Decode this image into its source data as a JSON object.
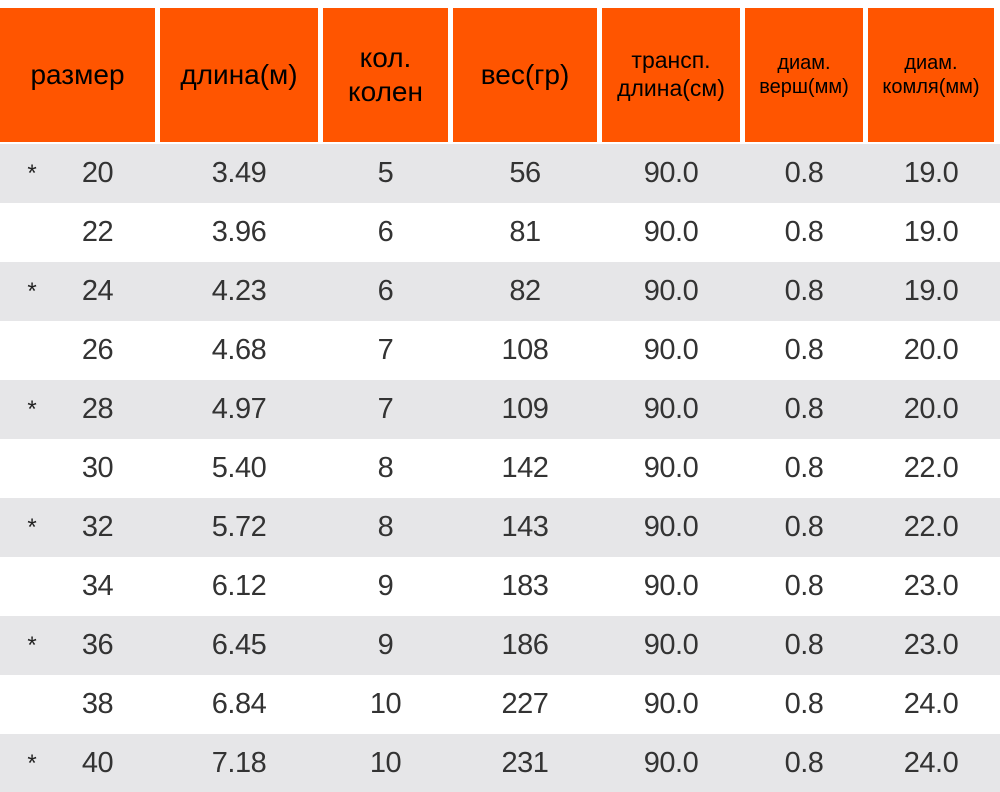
{
  "colors": {
    "header_bg": "#ff5500",
    "row_alt_bg": "#e6e6e8",
    "row_plain_bg": "#ffffff"
  },
  "headers": [
    "размер",
    "длина(м)",
    "кол.\nколен",
    "вес(гр)",
    "трансп.\nдлина(см)",
    "диам.\nверш(мм)",
    "диам.\nкомля(мм)"
  ],
  "rows": [
    {
      "marked": true,
      "star": "*",
      "size": "20",
      "length": "3.49",
      "sections": "5",
      "weight": "56",
      "transport": "90.0",
      "tip": "0.8",
      "butt": "19.0"
    },
    {
      "marked": false,
      "star": "",
      "size": "22",
      "length": "3.96",
      "sections": "6",
      "weight": "81",
      "transport": "90.0",
      "tip": "0.8",
      "butt": "19.0"
    },
    {
      "marked": true,
      "star": "*",
      "size": "24",
      "length": "4.23",
      "sections": "6",
      "weight": "82",
      "transport": "90.0",
      "tip": "0.8",
      "butt": "19.0"
    },
    {
      "marked": false,
      "star": "",
      "size": "26",
      "length": "4.68",
      "sections": "7",
      "weight": "108",
      "transport": "90.0",
      "tip": "0.8",
      "butt": "20.0"
    },
    {
      "marked": true,
      "star": "*",
      "size": "28",
      "length": "4.97",
      "sections": "7",
      "weight": "109",
      "transport": "90.0",
      "tip": "0.8",
      "butt": "20.0"
    },
    {
      "marked": false,
      "star": "",
      "size": "30",
      "length": "5.40",
      "sections": "8",
      "weight": "142",
      "transport": "90.0",
      "tip": "0.8",
      "butt": "22.0"
    },
    {
      "marked": true,
      "star": "*",
      "size": "32",
      "length": "5.72",
      "sections": "8",
      "weight": "143",
      "transport": "90.0",
      "tip": "0.8",
      "butt": "22.0"
    },
    {
      "marked": false,
      "star": "",
      "size": "34",
      "length": "6.12",
      "sections": "9",
      "weight": "183",
      "transport": "90.0",
      "tip": "0.8",
      "butt": "23.0"
    },
    {
      "marked": true,
      "star": "*",
      "size": "36",
      "length": "6.45",
      "sections": "9",
      "weight": "186",
      "transport": "90.0",
      "tip": "0.8",
      "butt": "23.0"
    },
    {
      "marked": false,
      "star": "",
      "size": "38",
      "length": "6.84",
      "sections": "10",
      "weight": "227",
      "transport": "90.0",
      "tip": "0.8",
      "butt": "24.0"
    },
    {
      "marked": true,
      "star": "*",
      "size": "40",
      "length": "7.18",
      "sections": "10",
      "weight": "231",
      "transport": "90.0",
      "tip": "0.8",
      "butt": "24.0"
    }
  ]
}
